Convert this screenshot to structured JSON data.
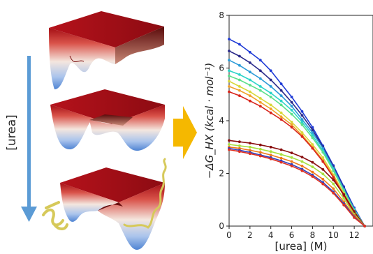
{
  "left_panel": {
    "urea_label": "[urea]",
    "arrow_color": "#5b9bd5",
    "transition_arrow_color": "#f5b800",
    "landscape_colors": {
      "top": "#a50f15",
      "mid": "#f4e6de",
      "bottom": "#4f84d3"
    },
    "surfaces": [
      {
        "name": "landscape-native"
      },
      {
        "name": "landscape-intermediate"
      },
      {
        "name": "landscape-denatured"
      }
    ],
    "protein_color": "#d6c95a"
  },
  "chart_data": {
    "type": "line",
    "title": "",
    "xlabel": "[urea] (M)",
    "ylabel": "−ΔG_HX (kcal · mol⁻¹)",
    "xlim": [
      0,
      13.8
    ],
    "ylim": [
      0,
      8
    ],
    "xticks": [
      0,
      2,
      4,
      6,
      8,
      10,
      12
    ],
    "xtick_labels": [
      "0",
      "2",
      "4",
      "6",
      "8",
      "10",
      "12"
    ],
    "yticks": [
      0,
      2,
      4,
      6,
      8
    ],
    "ytick_labels": [
      "0",
      "2",
      "4",
      "6",
      "8"
    ],
    "grid": false,
    "legend": "none",
    "series": [
      {
        "color": "#1f3bd6",
        "x": [
          0,
          1,
          2,
          3,
          4,
          5,
          6,
          7,
          8,
          9,
          10,
          11,
          12,
          13
        ],
        "y": [
          7.1,
          6.9,
          6.6,
          6.3,
          5.9,
          5.4,
          4.9,
          4.35,
          3.75,
          3.05,
          2.3,
          1.5,
          0.7,
          0.0
        ]
      },
      {
        "color": "#2a2a8a",
        "x": [
          0,
          1,
          2,
          3,
          4,
          5,
          6,
          7,
          8,
          9,
          10,
          11,
          12,
          13
        ],
        "y": [
          6.65,
          6.45,
          6.2,
          5.9,
          5.55,
          5.15,
          4.7,
          4.2,
          3.65,
          3.0,
          2.25,
          1.45,
          0.65,
          0.0
        ]
      },
      {
        "color": "#2b9bd8",
        "x": [
          0,
          1,
          2,
          3,
          4,
          5,
          6,
          7,
          8,
          9,
          10,
          11,
          12,
          13
        ],
        "y": [
          6.3,
          6.1,
          5.85,
          5.6,
          5.3,
          4.95,
          4.55,
          4.05,
          3.55,
          2.95,
          2.2,
          1.4,
          0.65,
          0.0
        ]
      },
      {
        "color": "#2bd4c8",
        "x": [
          0,
          1,
          2,
          3,
          4,
          5,
          6,
          7,
          8,
          9,
          10,
          11,
          12,
          13
        ],
        "y": [
          5.9,
          5.75,
          5.55,
          5.3,
          5.05,
          4.75,
          4.4,
          3.95,
          3.45,
          2.85,
          2.15,
          1.35,
          0.6,
          0.0
        ]
      },
      {
        "color": "#5be08a",
        "x": [
          0,
          1,
          2,
          3,
          4,
          5,
          6,
          7,
          8,
          9,
          10,
          11,
          12,
          13
        ],
        "y": [
          5.7,
          5.55,
          5.35,
          5.15,
          4.9,
          4.6,
          4.25,
          3.85,
          3.35,
          2.8,
          2.1,
          1.35,
          0.6,
          0.0
        ]
      },
      {
        "color": "#d8d83a",
        "x": [
          0,
          1,
          2,
          3,
          4,
          5,
          6,
          7,
          8,
          9,
          10,
          11,
          12,
          13
        ],
        "y": [
          5.5,
          5.3,
          5.1,
          4.85,
          4.6,
          4.3,
          3.95,
          3.55,
          3.1,
          2.6,
          1.95,
          1.25,
          0.55,
          0.0
        ]
      },
      {
        "color": "#f0a02a",
        "x": [
          0,
          1,
          2,
          3,
          4,
          5,
          6,
          7,
          8,
          9,
          10,
          11,
          12,
          13
        ],
        "y": [
          5.3,
          5.15,
          4.95,
          4.7,
          4.45,
          4.15,
          3.85,
          3.45,
          3.0,
          2.5,
          1.9,
          1.2,
          0.55,
          0.0
        ]
      },
      {
        "color": "#d8241a",
        "x": [
          0,
          1,
          2,
          3,
          4,
          5,
          6,
          7,
          8,
          9,
          10,
          11,
          12,
          13
        ],
        "y": [
          5.1,
          4.95,
          4.75,
          4.55,
          4.3,
          4.05,
          3.75,
          3.4,
          2.95,
          2.45,
          1.85,
          1.15,
          0.5,
          0.0
        ]
      },
      {
        "color": "#8a1010",
        "x": [
          0,
          1,
          2,
          3,
          4,
          5,
          6,
          7,
          8,
          9,
          10,
          11,
          12,
          13
        ],
        "y": [
          3.25,
          3.2,
          3.15,
          3.08,
          3.0,
          2.9,
          2.78,
          2.62,
          2.42,
          2.15,
          1.75,
          1.2,
          0.55,
          0.0
        ]
      },
      {
        "color": "#a8e040",
        "x": [
          0,
          1,
          2,
          3,
          4,
          5,
          6,
          7,
          8,
          9,
          10,
          11,
          12,
          13
        ],
        "y": [
          3.1,
          3.05,
          3.0,
          2.92,
          2.83,
          2.72,
          2.6,
          2.45,
          2.25,
          1.98,
          1.6,
          1.05,
          0.45,
          0.0
        ]
      },
      {
        "color": "#f07818",
        "x": [
          0,
          1,
          2,
          3,
          4,
          5,
          6,
          7,
          8,
          9,
          10,
          11,
          12,
          13
        ],
        "y": [
          3.0,
          2.95,
          2.88,
          2.8,
          2.7,
          2.58,
          2.45,
          2.28,
          2.05,
          1.78,
          1.42,
          0.92,
          0.4,
          0.0
        ]
      },
      {
        "color": "#3040c0",
        "x": [
          0,
          1,
          2,
          3,
          4,
          5,
          6,
          7,
          8,
          9,
          10,
          11,
          12,
          13
        ],
        "y": [
          2.95,
          2.88,
          2.8,
          2.7,
          2.6,
          2.48,
          2.34,
          2.16,
          1.94,
          1.66,
          1.3,
          0.85,
          0.35,
          0.0
        ]
      },
      {
        "color": "#e03020",
        "x": [
          0,
          1,
          2,
          3,
          4,
          5,
          6,
          7,
          8,
          9,
          10,
          11,
          12,
          13
        ],
        "y": [
          2.9,
          2.83,
          2.75,
          2.66,
          2.55,
          2.42,
          2.28,
          2.1,
          1.88,
          1.6,
          1.25,
          0.8,
          0.32,
          0.0
        ]
      }
    ]
  }
}
